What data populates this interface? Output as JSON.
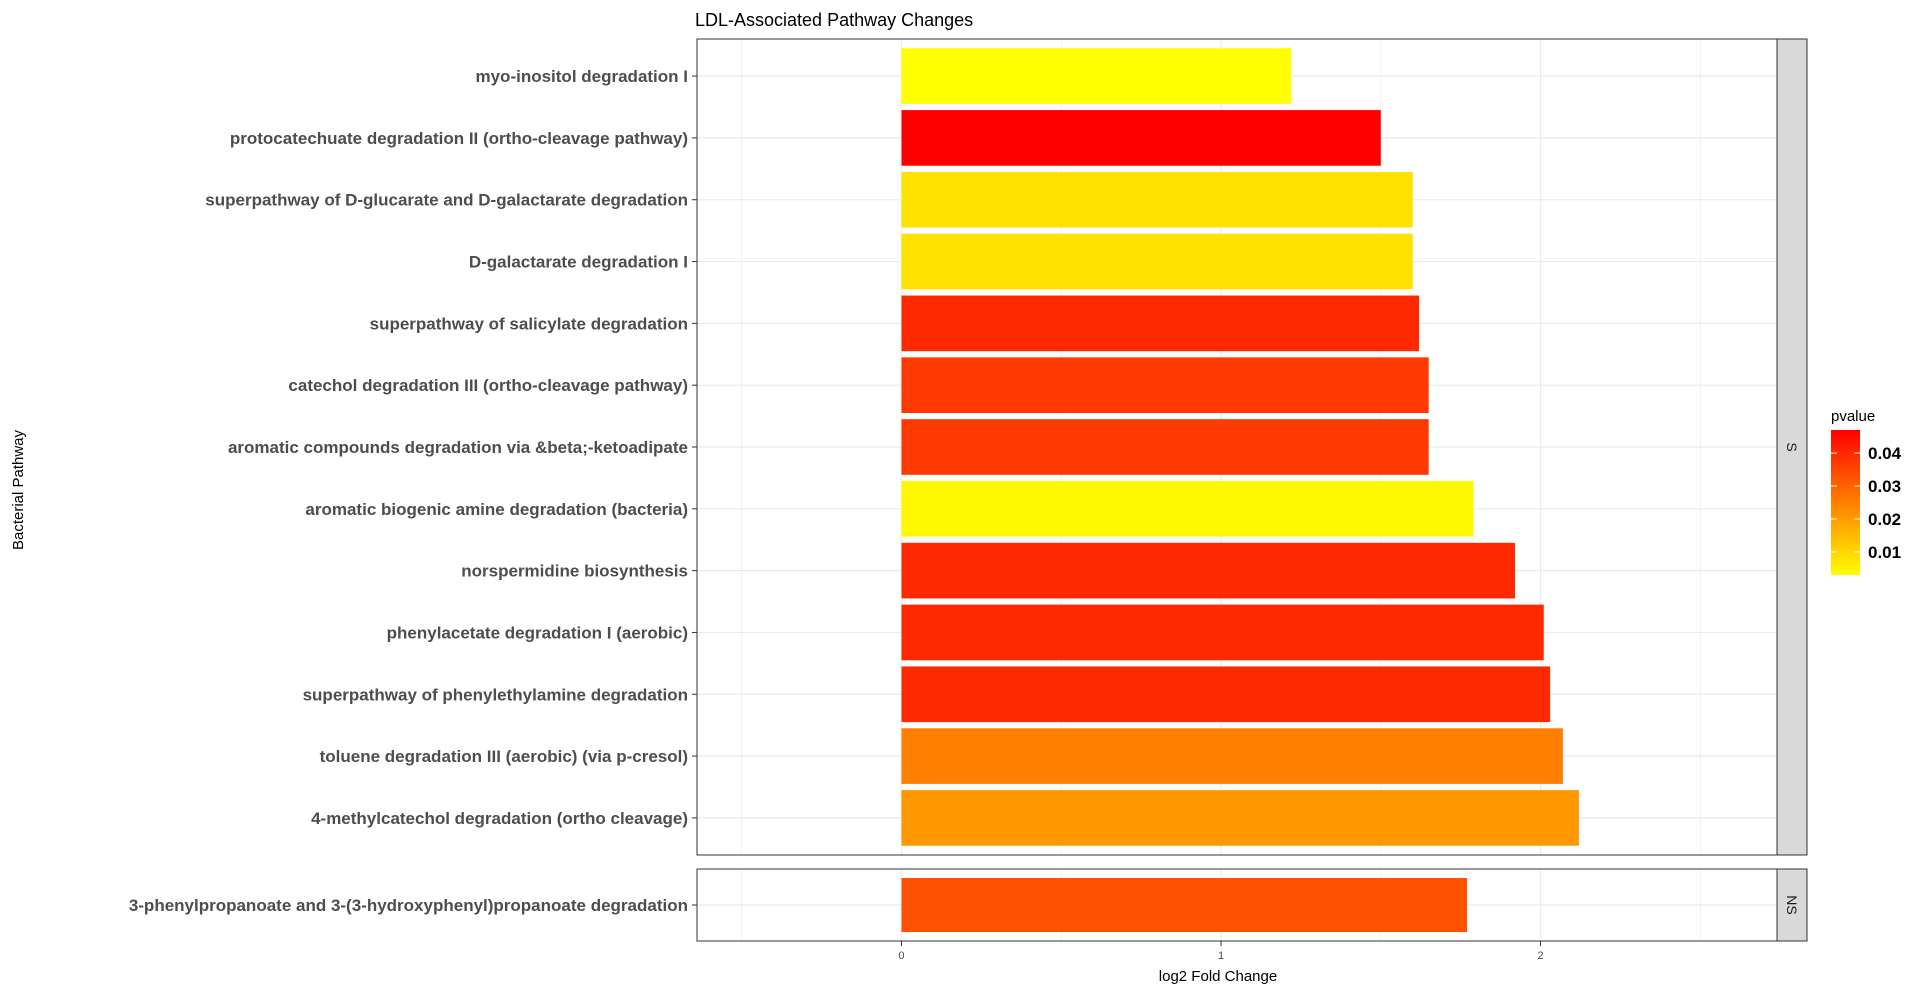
{
  "chart_data": {
    "type": "bar",
    "orientation": "horizontal",
    "title": "LDL-Associated Pathway Changes",
    "xlabel": "log2 Fold Change",
    "ylabel": "Bacterial Pathway",
    "xlim": [
      -0.64,
      2.74
    ],
    "x_ticks": [
      0,
      1,
      2
    ],
    "grid": true,
    "legend": {
      "title": "pvalue",
      "position": "right",
      "range": [
        0.003,
        0.047
      ],
      "ticks": [
        "0.01",
        "0.02",
        "0.03",
        "0.04"
      ],
      "tick_values": [
        0.01,
        0.02,
        0.03,
        0.04
      ],
      "low_color": "#ffff00",
      "high_color": "#ff0000"
    },
    "panels": [
      {
        "label": "S",
        "categories": [
          "myo-inositol degradation I",
          "protocatechuate degradation II (ortho-cleavage pathway)",
          "superpathway of D-glucarate and D-galactarate degradation",
          "D-galactarate degradation I",
          "superpathway of salicylate degradation",
          "catechol degradation III (ortho-cleavage pathway)",
          "aromatic compounds degradation via &beta;-ketoadipate",
          "aromatic biogenic amine degradation (bacteria)",
          "norspermidine biosynthesis",
          "phenylacetate degradation I (aerobic)",
          "superpathway of phenylethylamine degradation",
          "toluene degradation III (aerobic) (via p-cresol)",
          "4-methylcatechol degradation (ortho cleavage)"
        ],
        "values": [
          1.22,
          1.5,
          1.6,
          1.6,
          1.62,
          1.65,
          1.65,
          1.79,
          1.92,
          2.01,
          2.03,
          2.07,
          2.12
        ],
        "pvalues": [
          0.003,
          0.047,
          0.008,
          0.008,
          0.04,
          0.037,
          0.037,
          0.004,
          0.04,
          0.04,
          0.04,
          0.025,
          0.021
        ]
      },
      {
        "label": "NS",
        "categories": [
          "3-phenylpropanoate and 3-(3-hydroxyphenyl)propanoate degradation"
        ],
        "values": [
          1.77
        ],
        "pvalues": [
          0.033
        ]
      }
    ]
  }
}
